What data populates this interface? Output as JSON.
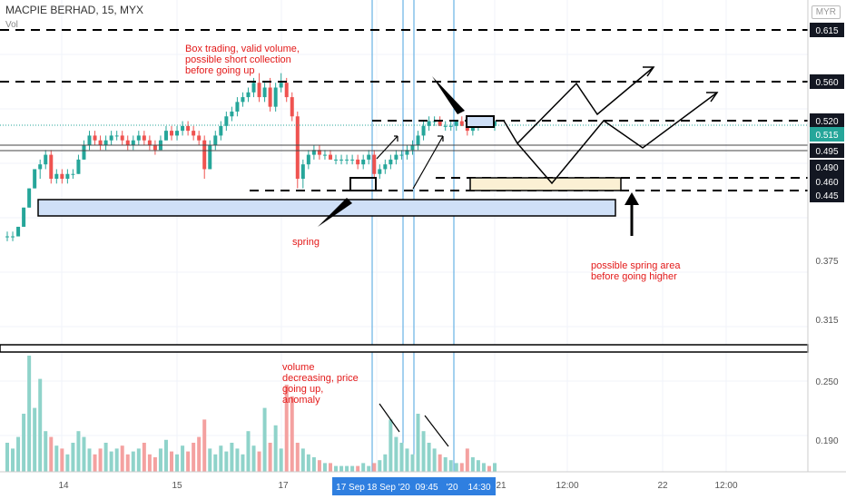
{
  "header": {
    "title": "MACPIE BERHAD, 15, MYX",
    "indicator": "Vol",
    "currency": "MYR"
  },
  "colors": {
    "up": "#26a69a",
    "down": "#ef5350",
    "vol_up": "#8fd3ca",
    "vol_down": "#f4a1a0",
    "annot": "#e31919",
    "blue_line": "#4aa3df",
    "box_fill": "#cfe0f7",
    "spring_fill": "#fbf0d4"
  },
  "chart_data": {
    "type": "candlestick",
    "title": "MACPIE BERHAD, 15, MYX",
    "price_axis_ticks": [
      "0.615",
      "0.560",
      "0.520",
      "0.515",
      "0.495",
      "0.490",
      "0.460",
      "0.445",
      "0.375",
      "0.315",
      "0.250",
      "0.190"
    ],
    "highlighted_levels": [
      {
        "label": "0.615",
        "style": "dark"
      },
      {
        "label": "0.560",
        "style": "dark"
      },
      {
        "label": "0.520",
        "style": "dark"
      },
      {
        "label": "0.515",
        "style": "green"
      },
      {
        "label": "0.495",
        "style": "dark"
      },
      {
        "label": "0.490",
        "style": "dark"
      },
      {
        "label": "0.460",
        "style": "dark"
      },
      {
        "label": "0.445",
        "style": "dark"
      }
    ],
    "time_axis_ticks": [
      "14",
      "15",
      "17",
      "21",
      "12:00",
      "22",
      "12:00"
    ],
    "time_axis_highlight": [
      "17 Sep",
      "18 Sep '20",
      "09:45",
      "'20",
      "14:30"
    ],
    "ohlc": [
      [
        0.4,
        0.405,
        0.395,
        0.4
      ],
      [
        0.4,
        0.405,
        0.395,
        0.4
      ],
      [
        0.4,
        0.41,
        0.4,
        0.41
      ],
      [
        0.41,
        0.43,
        0.41,
        0.43
      ],
      [
        0.43,
        0.45,
        0.43,
        0.45
      ],
      [
        0.45,
        0.47,
        0.45,
        0.47
      ],
      [
        0.47,
        0.48,
        0.46,
        0.475
      ],
      [
        0.475,
        0.49,
        0.47,
        0.485
      ],
      [
        0.485,
        0.49,
        0.455,
        0.46
      ],
      [
        0.46,
        0.47,
        0.455,
        0.465
      ],
      [
        0.465,
        0.47,
        0.455,
        0.46
      ],
      [
        0.46,
        0.47,
        0.455,
        0.465
      ],
      [
        0.465,
        0.47,
        0.46,
        0.465
      ],
      [
        0.465,
        0.485,
        0.465,
        0.48
      ],
      [
        0.48,
        0.5,
        0.48,
        0.495
      ],
      [
        0.495,
        0.51,
        0.49,
        0.505
      ],
      [
        0.505,
        0.51,
        0.495,
        0.5
      ],
      [
        0.5,
        0.505,
        0.49,
        0.495
      ],
      [
        0.495,
        0.505,
        0.49,
        0.5
      ],
      [
        0.5,
        0.51,
        0.495,
        0.505
      ],
      [
        0.505,
        0.51,
        0.5,
        0.505
      ],
      [
        0.505,
        0.51,
        0.495,
        0.5
      ],
      [
        0.5,
        0.505,
        0.49,
        0.495
      ],
      [
        0.495,
        0.505,
        0.49,
        0.5
      ],
      [
        0.5,
        0.51,
        0.495,
        0.505
      ],
      [
        0.505,
        0.51,
        0.495,
        0.5
      ],
      [
        0.5,
        0.505,
        0.49,
        0.495
      ],
      [
        0.495,
        0.5,
        0.485,
        0.49
      ],
      [
        0.49,
        0.505,
        0.49,
        0.5
      ],
      [
        0.5,
        0.515,
        0.5,
        0.51
      ],
      [
        0.51,
        0.515,
        0.5,
        0.505
      ],
      [
        0.505,
        0.515,
        0.5,
        0.51
      ],
      [
        0.51,
        0.52,
        0.505,
        0.515
      ],
      [
        0.515,
        0.52,
        0.505,
        0.51
      ],
      [
        0.51,
        0.515,
        0.5,
        0.505
      ],
      [
        0.505,
        0.51,
        0.495,
        0.5
      ],
      [
        0.5,
        0.505,
        0.46,
        0.47
      ],
      [
        0.47,
        0.5,
        0.47,
        0.495
      ],
      [
        0.495,
        0.51,
        0.49,
        0.505
      ],
      [
        0.505,
        0.52,
        0.5,
        0.515
      ],
      [
        0.515,
        0.53,
        0.51,
        0.525
      ],
      [
        0.525,
        0.535,
        0.52,
        0.53
      ],
      [
        0.53,
        0.545,
        0.525,
        0.54
      ],
      [
        0.54,
        0.55,
        0.535,
        0.545
      ],
      [
        0.545,
        0.555,
        0.54,
        0.55
      ],
      [
        0.55,
        0.565,
        0.545,
        0.56
      ],
      [
        0.56,
        0.57,
        0.54,
        0.545
      ],
      [
        0.545,
        0.56,
        0.54,
        0.555
      ],
      [
        0.555,
        0.565,
        0.53,
        0.535
      ],
      [
        0.535,
        0.56,
        0.53,
        0.555
      ],
      [
        0.555,
        0.57,
        0.55,
        0.56
      ],
      [
        0.56,
        0.565,
        0.54,
        0.545
      ],
      [
        0.545,
        0.55,
        0.52,
        0.525
      ],
      [
        0.525,
        0.53,
        0.45,
        0.46
      ],
      [
        0.46,
        0.48,
        0.45,
        0.475
      ],
      [
        0.475,
        0.49,
        0.47,
        0.485
      ],
      [
        0.485,
        0.495,
        0.48,
        0.49
      ],
      [
        0.49,
        0.495,
        0.48,
        0.485
      ],
      [
        0.485,
        0.49,
        0.48,
        0.485
      ],
      [
        0.485,
        0.49,
        0.48,
        0.48
      ],
      [
        0.48,
        0.485,
        0.475,
        0.48
      ],
      [
        0.48,
        0.485,
        0.475,
        0.48
      ],
      [
        0.48,
        0.485,
        0.475,
        0.48
      ],
      [
        0.48,
        0.485,
        0.475,
        0.48
      ],
      [
        0.48,
        0.485,
        0.47,
        0.475
      ],
      [
        0.475,
        0.485,
        0.47,
        0.48
      ],
      [
        0.48,
        0.49,
        0.475,
        0.485
      ],
      [
        0.485,
        0.49,
        0.46,
        0.465
      ],
      [
        0.465,
        0.475,
        0.46,
        0.47
      ],
      [
        0.47,
        0.48,
        0.465,
        0.475
      ],
      [
        0.475,
        0.485,
        0.47,
        0.48
      ],
      [
        0.48,
        0.49,
        0.475,
        0.485
      ],
      [
        0.485,
        0.49,
        0.48,
        0.485
      ],
      [
        0.485,
        0.495,
        0.48,
        0.49
      ],
      [
        0.49,
        0.5,
        0.485,
        0.495
      ],
      [
        0.495,
        0.51,
        0.49,
        0.505
      ],
      [
        0.505,
        0.52,
        0.5,
        0.515
      ],
      [
        0.515,
        0.525,
        0.51,
        0.52
      ],
      [
        0.52,
        0.525,
        0.515,
        0.52
      ],
      [
        0.52,
        0.525,
        0.515,
        0.515
      ],
      [
        0.515,
        0.52,
        0.51,
        0.515
      ],
      [
        0.515,
        0.52,
        0.51,
        0.515
      ],
      [
        0.515,
        0.52,
        0.51,
        0.52
      ],
      [
        0.52,
        0.525,
        0.515,
        0.515
      ],
      [
        0.515,
        0.52,
        0.505,
        0.51
      ],
      [
        0.51,
        0.52,
        0.505,
        0.515
      ],
      [
        0.515,
        0.52,
        0.51,
        0.52
      ],
      [
        0.52,
        0.525,
        0.515,
        0.52
      ],
      [
        0.52,
        0.525,
        0.515,
        0.515
      ],
      [
        0.515,
        0.52,
        0.51,
        0.52
      ]
    ],
    "volume": [
      10,
      8,
      12,
      20,
      40,
      22,
      32,
      14,
      12,
      9,
      8,
      6,
      10,
      14,
      12,
      8,
      6,
      8,
      10,
      7,
      8,
      9,
      6,
      7,
      8,
      10,
      6,
      5,
      8,
      11,
      7,
      6,
      9,
      7,
      10,
      12,
      18,
      8,
      6,
      9,
      7,
      10,
      8,
      6,
      14,
      9,
      7,
      22,
      10,
      16,
      8,
      30,
      26,
      10,
      8,
      6,
      5,
      4,
      3,
      3,
      2,
      2,
      2,
      2,
      2,
      3,
      2,
      3,
      4,
      6,
      18,
      12,
      10,
      8,
      6,
      20,
      14,
      10,
      8,
      6,
      5,
      4,
      3,
      3,
      8,
      5,
      4,
      3,
      2,
      3
    ]
  },
  "annotations": {
    "box_trading": "Box trading, valid volume,\npossible short collection\nbefore going up",
    "spring": "spring",
    "volume_note": "volume\ndecreasing, price\ngoing up,\nanomaly",
    "spring_area": "possible spring area\nbefore going higher"
  }
}
